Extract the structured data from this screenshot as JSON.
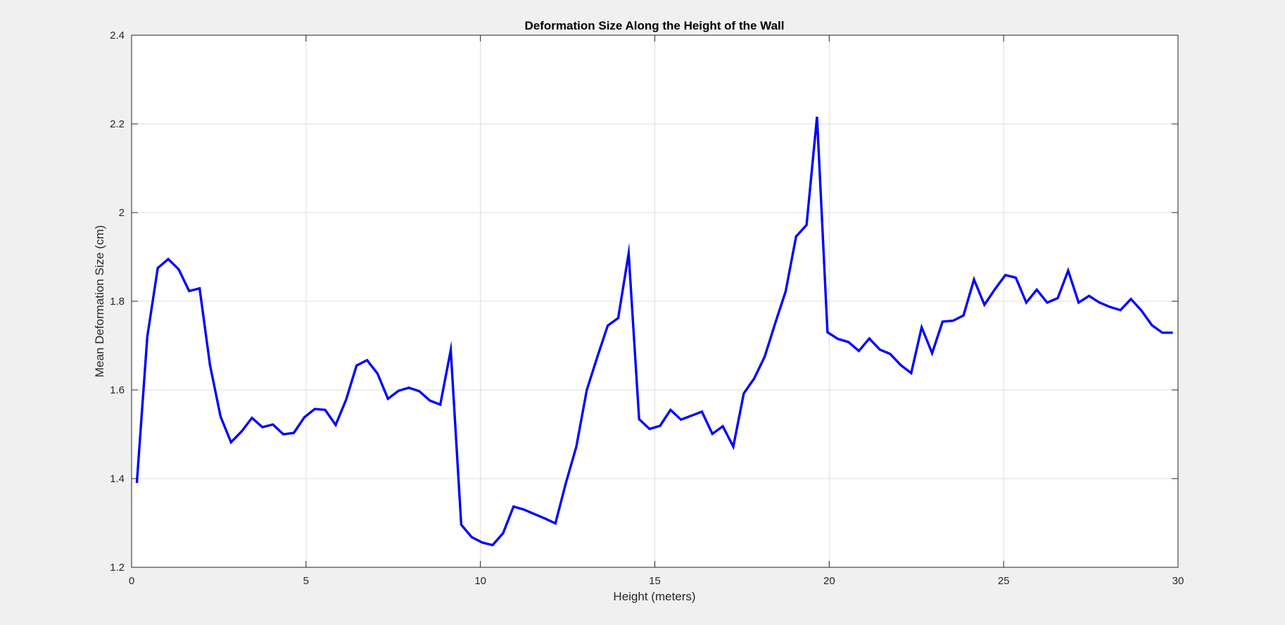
{
  "chart_data": {
    "type": "line",
    "title": "Deformation Size Along the Height of the Wall",
    "xlabel": "Height (meters)",
    "ylabel": "Mean Deformation Size (cm)",
    "xlim": [
      0,
      30
    ],
    "ylim": [
      1.2,
      2.4
    ],
    "xticks": [
      "0",
      "5",
      "10",
      "15",
      "20",
      "25",
      "30"
    ],
    "yticks": [
      "1.2",
      "1.4",
      "1.6",
      "1.8",
      "2",
      "2.2",
      "2.4"
    ],
    "grid": true,
    "legend": "none",
    "series": [
      {
        "color": "#0000ff",
        "x": [
          0.15,
          0.45,
          0.75,
          1.05,
          1.35,
          1.65,
          1.95,
          2.25,
          2.55,
          2.85,
          3.15,
          3.45,
          3.75,
          4.05,
          4.35,
          4.65,
          4.95,
          5.25,
          5.55,
          5.85,
          6.15,
          6.45,
          6.75,
          7.05,
          7.35,
          7.65,
          7.95,
          8.25,
          8.55,
          8.85,
          9.15,
          9.45,
          9.75,
          10.05,
          10.35,
          10.65,
          10.95,
          11.25,
          11.55,
          11.85,
          12.15,
          12.45,
          12.75,
          13.05,
          13.35,
          13.65,
          13.95,
          14.25,
          14.55,
          14.85,
          15.15,
          15.45,
          15.75,
          16.05,
          16.35,
          16.65,
          16.95,
          17.25,
          17.55,
          17.85,
          18.15,
          18.45,
          18.75,
          19.05,
          19.35,
          19.65,
          19.95,
          20.25,
          20.55,
          20.85,
          21.15,
          21.45,
          21.75,
          22.05,
          22.35,
          22.65,
          22.95,
          23.25,
          23.55,
          23.85,
          24.15,
          24.45,
          24.75,
          25.05,
          25.35,
          25.65,
          25.95,
          26.25,
          26.55,
          26.85,
          27.15,
          27.45,
          27.75,
          28.05,
          28.35,
          28.65,
          28.95,
          29.25,
          29.55,
          29.85
        ],
        "y": [
          1.39,
          1.72,
          1.875,
          1.895,
          1.872,
          1.823,
          1.829,
          1.655,
          1.54,
          1.482,
          1.506,
          1.537,
          1.516,
          1.522,
          1.5,
          1.503,
          1.538,
          1.557,
          1.555,
          1.521,
          1.578,
          1.655,
          1.667,
          1.637,
          1.58,
          1.598,
          1.605,
          1.597,
          1.576,
          1.567,
          1.69,
          1.296,
          1.268,
          1.256,
          1.25,
          1.277,
          1.337,
          1.33,
          1.32,
          1.31,
          1.299,
          1.39,
          1.472,
          1.6,
          1.674,
          1.745,
          1.762,
          1.908,
          1.534,
          1.512,
          1.519,
          1.555,
          1.533,
          1.542,
          1.551,
          1.501,
          1.518,
          1.472,
          1.592,
          1.626,
          1.675,
          1.75,
          1.822,
          1.946,
          1.972,
          2.216,
          1.73,
          1.715,
          1.708,
          1.688,
          1.716,
          1.691,
          1.681,
          1.656,
          1.638,
          1.741,
          1.683,
          1.754,
          1.756,
          1.768,
          1.849,
          1.792,
          1.827,
          1.859,
          1.853,
          1.797,
          1.826,
          1.797,
          1.807,
          1.869,
          1.797,
          1.812,
          1.797,
          1.787,
          1.78,
          1.805,
          1.779,
          1.746,
          1.729,
          1.729
        ]
      }
    ]
  }
}
